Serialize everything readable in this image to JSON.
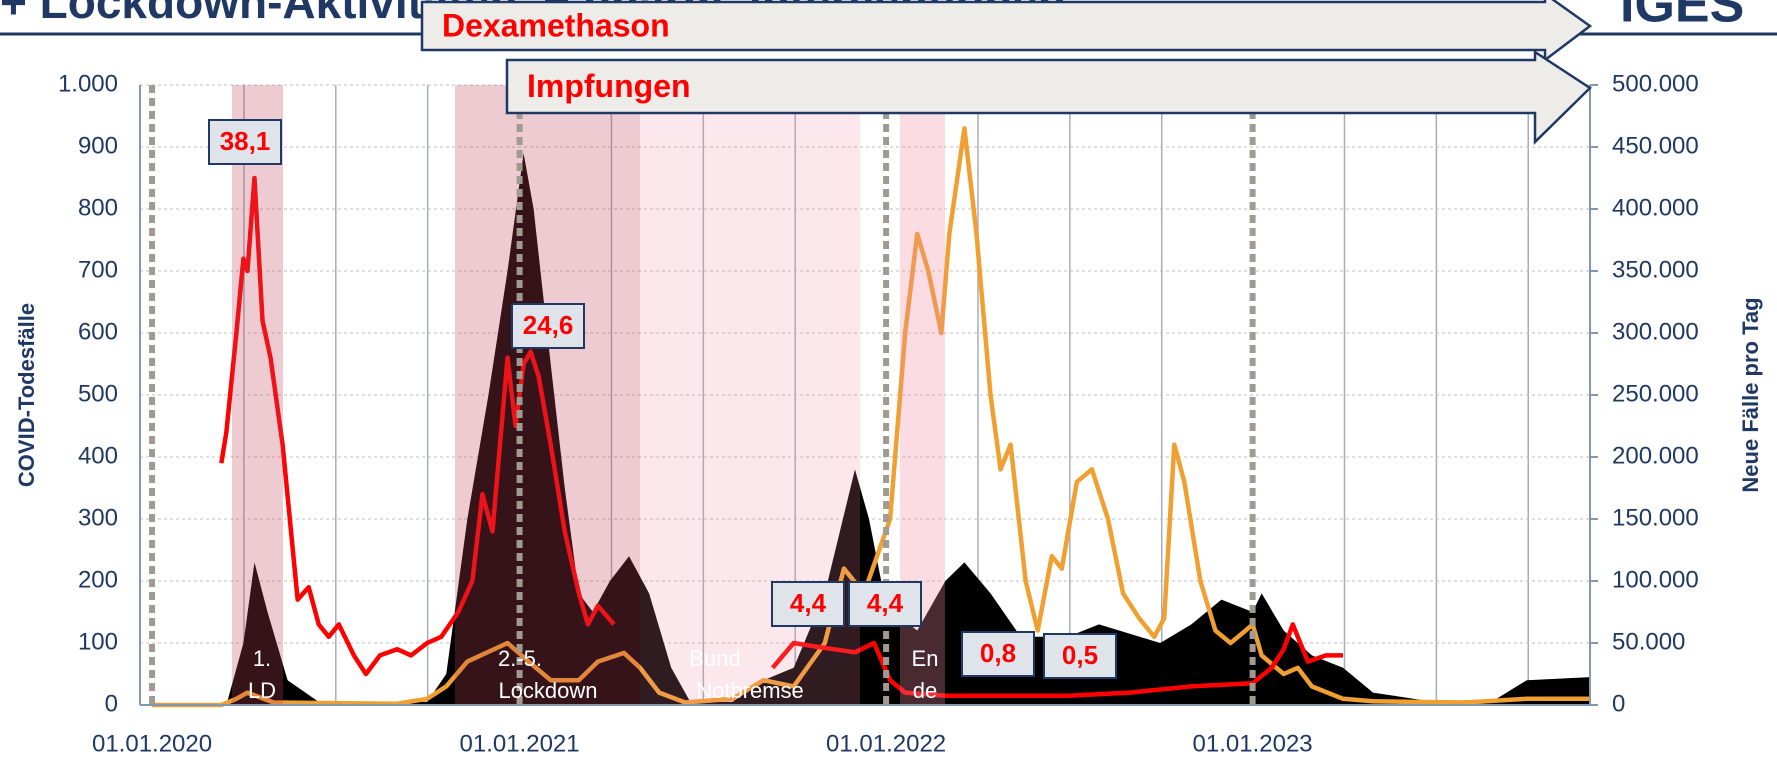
{
  "chart_data": {
    "type": "line",
    "title": "+ Lockdown-Aktivitäten, + pharm. Interventionen",
    "logo": "IGES",
    "ylabel": "COVID-Todesfälle",
    "y2label": "Neue Fälle pro Tag",
    "xlim": [
      "20.12.2019",
      "03.12.2023"
    ],
    "xticks": [
      "01.01.2020",
      "01.01.2021",
      "01.01.2022",
      "01.01.2023"
    ],
    "ylim": [
      0,
      1000
    ],
    "yticks": [
      0,
      100,
      200,
      300,
      400,
      500,
      600,
      700,
      800,
      900,
      {
        "value": 1000,
        "label": "1.000"
      }
    ],
    "y2lim": [
      0,
      500000
    ],
    "y2ticks": [
      0,
      {
        "value": 50000,
        "label": "50.000"
      },
      {
        "value": 100000,
        "label": "100.000"
      },
      {
        "value": 150000,
        "label": "150.000"
      },
      {
        "value": 200000,
        "label": "200.000"
      },
      {
        "value": 250000,
        "label": "250.000"
      },
      {
        "value": 300000,
        "label": "300.000"
      },
      {
        "value": 350000,
        "label": "350.000"
      },
      {
        "value": 400000,
        "label": "400.000"
      },
      {
        "value": 450000,
        "label": "450.000"
      },
      {
        "value": 500000,
        "label": "500.000"
      }
    ],
    "grid": true,
    "series": [
      {
        "kind": "area",
        "color": "#000000",
        "x": [
          "01.01.2020",
          "15.03.2020",
          "01.04.2020",
          "12.04.2020",
          "25.04.2020",
          "15.05.2020",
          "15.06.2020",
          "01.10.2020",
          "20.10.2020",
          "10.11.2020",
          "01.12.2020",
          "20.12.2020",
          "05.01.2021",
          "15.01.2021",
          "01.02.2021",
          "15.02.2021",
          "01.03.2021",
          "15.03.2021",
          "01.04.2021",
          "20.04.2021",
          "10.05.2021",
          "01.06.2021",
          "20.06.2021",
          "01.08.2021",
          "01.09.2021",
          "01.10.2021",
          "01.11.2021",
          "01.12.2021",
          "15.12.2021",
          "01.01.2022",
          "01.02.2022",
          "01.03.2022",
          "20.03.2022",
          "15.04.2022",
          "15.05.2022",
          "01.07.2022",
          "01.08.2022",
          "01.10.2022",
          "01.11.2022",
          "01.12.2022",
          "01.01.2023",
          "10.01.2023",
          "01.02.2023",
          "01.03.2023",
          "01.04.2023",
          "01.05.2023",
          "01.07.2023",
          "01.09.2023",
          "01.10.2023",
          "03.12.2023"
        ],
        "values": [
          0,
          0,
          100,
          230,
          150,
          40,
          5,
          5,
          50,
          300,
          500,
          700,
          890,
          800,
          550,
          350,
          180,
          150,
          200,
          240,
          180,
          60,
          5,
          5,
          40,
          60,
          180,
          380,
          300,
          160,
          120,
          200,
          230,
          180,
          110,
          110,
          130,
          100,
          130,
          170,
          150,
          180,
          120,
          80,
          60,
          20,
          5,
          10,
          40,
          45
        ]
      },
      {
        "kind": "line",
        "color": "#f0a030",
        "axis": "y2",
        "x": [
          "01.01.2020",
          "10.03.2020",
          "25.03.2020",
          "05.04.2020",
          "01.05.2020",
          "01.09.2020",
          "01.10.2020",
          "20.10.2020",
          "10.11.2020",
          "20.12.2020",
          "10.01.2021",
          "01.02.2021",
          "01.03.2021",
          "20.03.2021",
          "15.04.2021",
          "01.05.2021",
          "20.05.2021",
          "15.06.2021",
          "01.08.2021",
          "01.09.2021",
          "01.10.2021",
          "01.11.2021",
          "20.11.2021",
          "10.12.2021",
          "05.01.2022",
          "20.01.2022",
          "01.02.2022",
          "12.02.2022",
          "25.02.2022",
          "05.03.2022",
          "20.03.2022",
          "01.04.2022",
          "15.04.2022",
          "25.04.2022",
          "05.05.2022",
          "20.05.2022",
          "01.06.2022",
          "15.06.2022",
          "25.06.2022",
          "10.07.2022",
          "25.07.2022",
          "10.08.2022",
          "25.08.2022",
          "10.09.2022",
          "25.09.2022",
          "05.10.2022",
          "15.10.2022",
          "25.10.2022",
          "10.11.2022",
          "25.11.2022",
          "10.12.2022",
          "25.12.2022",
          "01.01.2023",
          "10.01.2023",
          "01.02.2023",
          "15.02.2023",
          "01.03.2023",
          "01.04.2023",
          "01.05.2023",
          "01.08.2023",
          "01.10.2023",
          "03.12.2023"
        ],
        "values": [
          0,
          0,
          5000,
          10000,
          2000,
          1000,
          5000,
          15000,
          35000,
          50000,
          35000,
          20000,
          20000,
          35000,
          42000,
          30000,
          10000,
          2000,
          5000,
          20000,
          15000,
          50000,
          110000,
          90000,
          150000,
          300000,
          380000,
          350000,
          300000,
          380000,
          465000,
          380000,
          250000,
          190000,
          210000,
          100000,
          60000,
          120000,
          110000,
          180000,
          190000,
          150000,
          90000,
          70000,
          55000,
          70000,
          210000,
          180000,
          100000,
          60000,
          50000,
          60000,
          65000,
          40000,
          25000,
          30000,
          15000,
          5000,
          3000,
          2000,
          5000,
          5000
        ]
      },
      {
        "kind": "line",
        "color": "#ff0000",
        "x": [
          "10.03.2020",
          "15.03.2020",
          "25.03.2020",
          "01.04.2020",
          "05.04.2020",
          "12.04.2020",
          "20.04.2020",
          "28.04.2020",
          "10.05.2020",
          "25.05.2020",
          "05.06.2020",
          "15.06.2020",
          "25.06.2020",
          "05.07.2020",
          "20.07.2020",
          "01.08.2020",
          "15.08.2020",
          "01.09.2020",
          "15.09.2020",
          "01.10.2020",
          "15.10.2020",
          "01.11.2020",
          "15.11.2020",
          "25.11.2020",
          "05.12.2020",
          "20.12.2020",
          "28.12.2020",
          "05.01.2021",
          "12.01.2021",
          "20.01.2021",
          "01.02.2021",
          "15.02.2021",
          "01.03.2021",
          "10.03.2021",
          "20.03.2021",
          "05.04.2021",
          "01.06.2021",
          "10.09.2021",
          "01.10.2021",
          "20.10.2021",
          "10.11.2021",
          "01.12.2021",
          "20.12.2021",
          "05.01.2022",
          "20.01.2022",
          "01.03.2022",
          "01.05.2022",
          "01.07.2022",
          "01.09.2022",
          "01.11.2022",
          "01.01.2023",
          "20.01.2023",
          "01.02.2023",
          "10.02.2023",
          "25.02.2023",
          "15.03.2023",
          "01.04.2023"
        ],
        "values": [
          390,
          440,
          600,
          720,
          700,
          850,
          620,
          560,
          420,
          170,
          190,
          130,
          110,
          130,
          80,
          50,
          80,
          90,
          80,
          100,
          110,
          150,
          200,
          340,
          280,
          560,
          450,
          550,
          570,
          530,
          420,
          280,
          180,
          130,
          160,
          130,
          null,
          60,
          100,
          95,
          90,
          85,
          100,
          40,
          20,
          15,
          15,
          15,
          20,
          30,
          35,
          60,
          90,
          130,
          70,
          80,
          80
        ]
      }
    ],
    "annotations": [
      "38,1",
      "24,6",
      "4,4",
      "4,4",
      "0,8",
      "0,5"
    ],
    "period_labels": [
      [
        "1.",
        "LD"
      ],
      [
        "2.-5.",
        "Lockdown"
      ],
      [
        "Bund",
        "Notbremse"
      ],
      [
        "En",
        "de"
      ]
    ],
    "interventions": [
      "Dexamethason",
      "Impfungen"
    ]
  }
}
